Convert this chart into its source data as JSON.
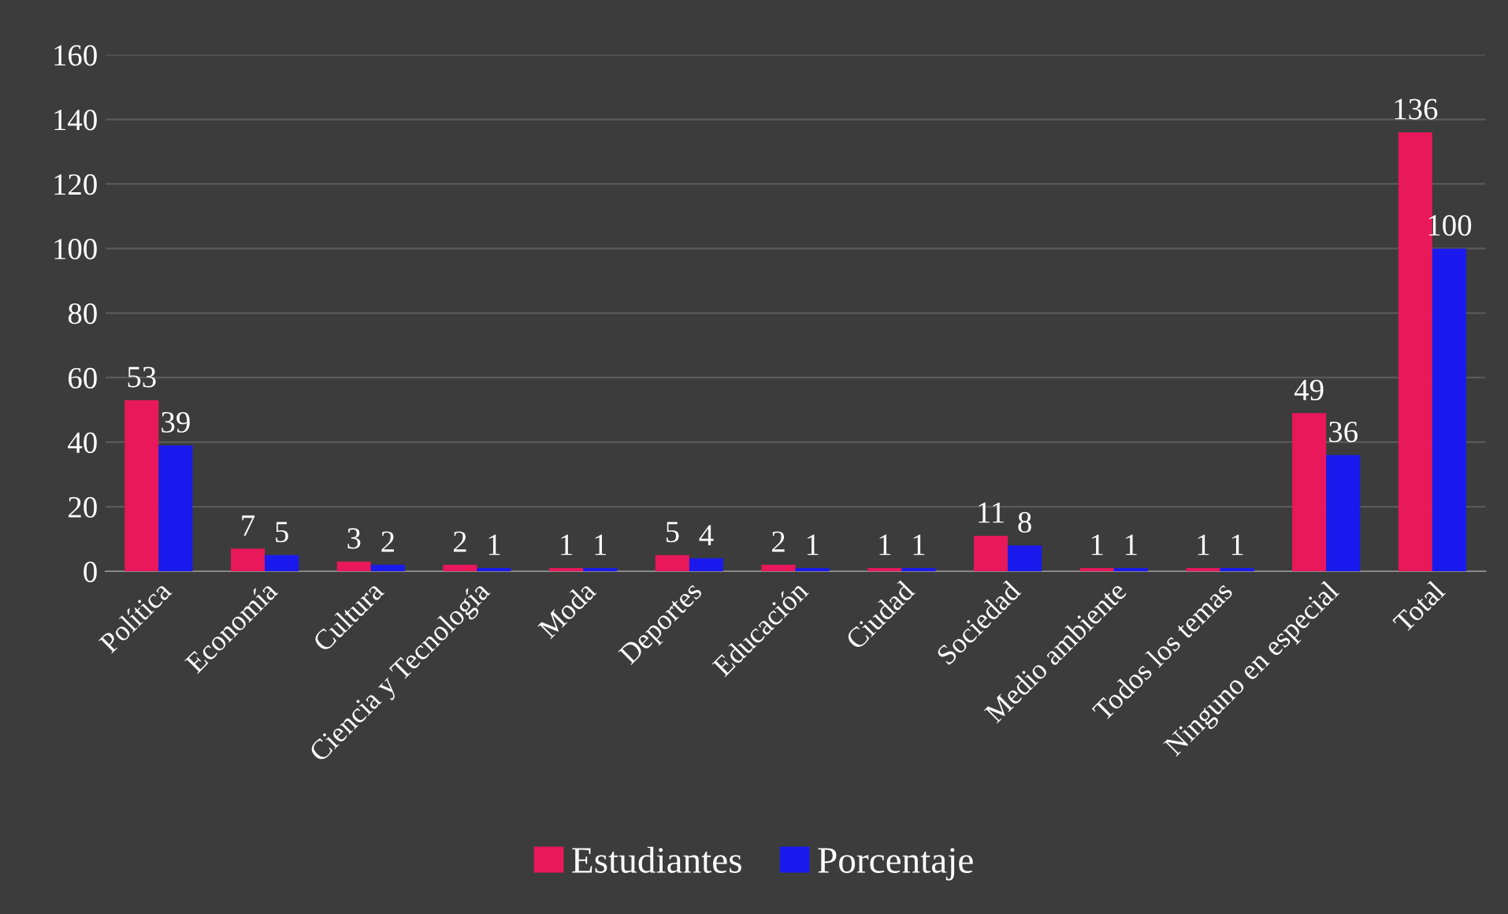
{
  "chart_data": {
    "type": "bar",
    "categories": [
      "Política",
      "Economía",
      "Cultura",
      "Ciencia y Tecnología",
      "Moda",
      "Deportes",
      "Educación",
      "Ciudad",
      "Sociedad",
      "Medio ambiente",
      "Todos los temas",
      "Ninguno en especial",
      "Total"
    ],
    "series": [
      {
        "name": "Estudiantes",
        "color": "#e8185a",
        "values": [
          53,
          7,
          3,
          2,
          1,
          5,
          2,
          1,
          11,
          1,
          1,
          49,
          136
        ]
      },
      {
        "name": "Porcentaje",
        "color": "#1a1aee",
        "values": [
          39,
          5,
          2,
          1,
          1,
          4,
          1,
          1,
          8,
          1,
          1,
          36,
          100
        ]
      }
    ],
    "ylim": [
      0,
      160
    ],
    "yticks": [
      0,
      20,
      40,
      60,
      80,
      100,
      120,
      140,
      160
    ],
    "grid": "y",
    "legend": "bottom",
    "data_labels": true
  }
}
